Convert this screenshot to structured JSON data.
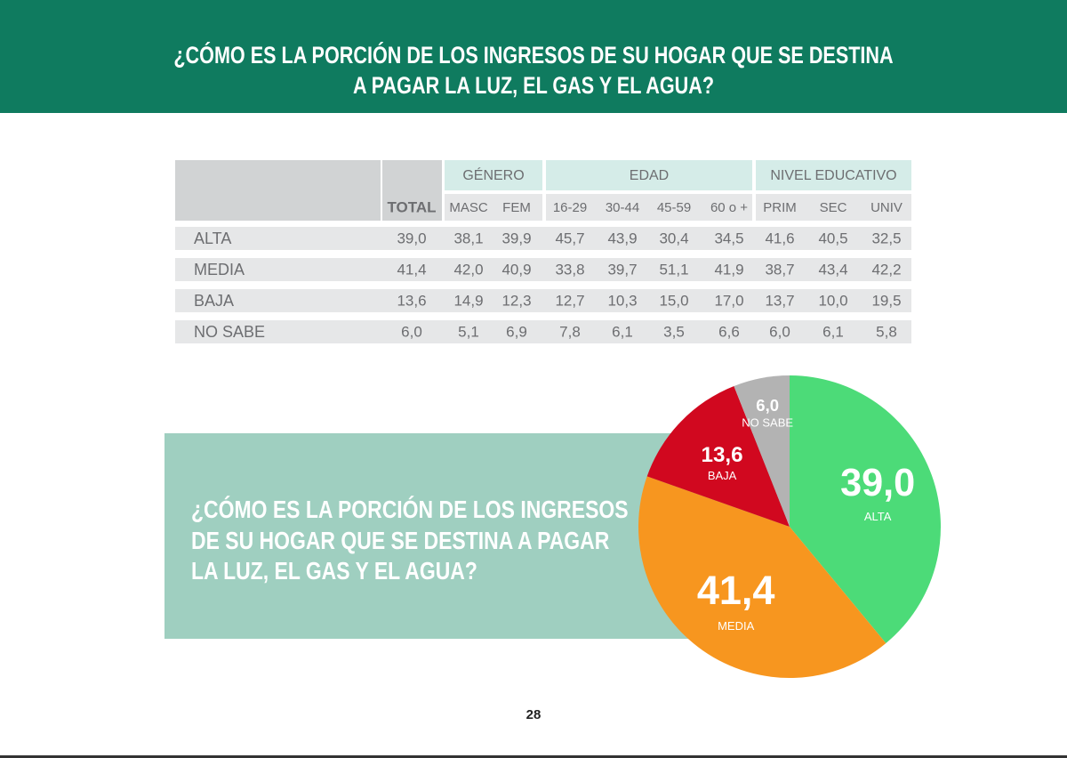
{
  "header": {
    "title_lines": [
      "¿CÓMO ES LA PORCIÓN DE LOS INGRESOS DE SU HOGAR QUE SE DESTINA",
      "A PAGAR LA LUZ, EL GAS Y EL AGUA?"
    ]
  },
  "table": {
    "total": "TOTAL",
    "groups": [
      {
        "label": "GÉNERO",
        "columns": [
          "MASC",
          "FEM"
        ]
      },
      {
        "label": "EDAD",
        "columns": [
          "16-29",
          "30-44",
          "45-59",
          "60 o +"
        ]
      },
      {
        "label": "NIVEL EDUCATIVO",
        "columns": [
          "PRIM",
          "SEC",
          "UNIV"
        ]
      }
    ],
    "rows": [
      {
        "label": "ALTA",
        "cells": [
          "39,0",
          "38,1",
          "39,9",
          "45,7",
          "43,9",
          "30,4",
          "34,5",
          "41,6",
          "40,5",
          "32,5"
        ]
      },
      {
        "label": "MEDIA",
        "cells": [
          "41,4",
          "42,0",
          "40,9",
          "33,8",
          "39,7",
          "51,1",
          "41,9",
          "38,7",
          "43,4",
          "42,2"
        ]
      },
      {
        "label": "BAJA",
        "cells": [
          "13,6",
          "14,9",
          "12,3",
          "12,7",
          "10,3",
          "15,0",
          "17,0",
          "13,7",
          "10,0",
          "19,5"
        ]
      },
      {
        "label": "NO SABE",
        "cells": [
          "6,0",
          "5,1",
          "6,9",
          "7,8",
          "6,1",
          "3,5",
          "6,6",
          "6,0",
          "6,1",
          "5,8"
        ]
      }
    ]
  },
  "panel": {
    "lines": [
      "¿CÓMO ES LA PORCIÓN DE LOS INGRESOS",
      "DE SU HOGAR QUE SE DESTINA A PAGAR",
      "LA LUZ, EL GAS Y EL AGUA?"
    ]
  },
  "chart_data": {
    "type": "pie",
    "categories": [
      "ALTA",
      "MEDIA",
      "BAJA",
      "NO SABE"
    ],
    "values": [
      39.0,
      41.4,
      13.6,
      6.0
    ],
    "value_labels": [
      "39,0",
      "41,4",
      "13,6",
      "6,0"
    ],
    "colors": [
      "#4cdb78",
      "#f7961f",
      "#d1081f",
      "#b3b3b3"
    ]
  },
  "page_number": "28"
}
